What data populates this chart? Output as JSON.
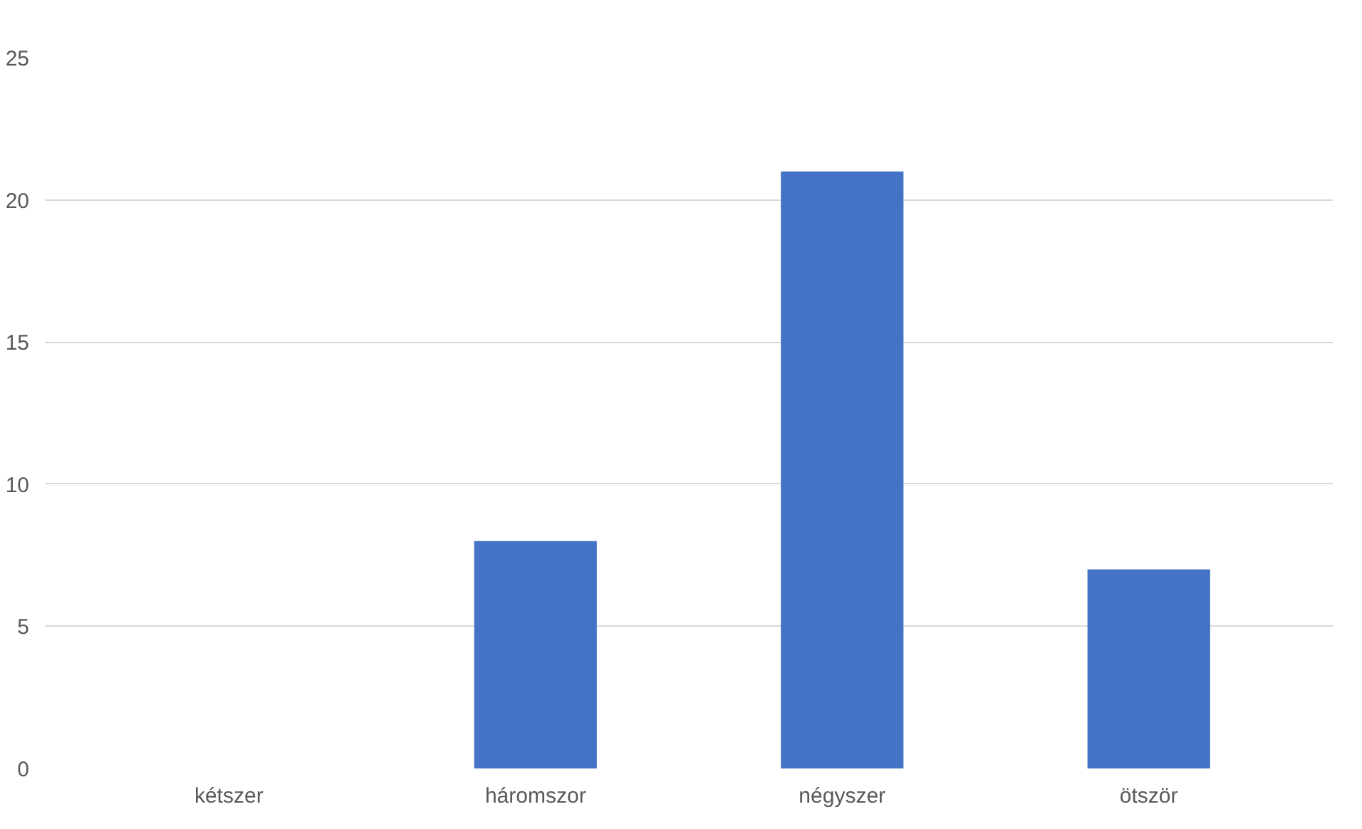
{
  "chart_data": {
    "type": "bar",
    "categories": [
      "kétszer",
      "háromszor",
      "négyszer",
      "ötször"
    ],
    "values": [
      0,
      8,
      21,
      7
    ],
    "color": "#4472c4",
    "ylim": [
      0,
      25
    ],
    "yticks": [
      0,
      5,
      10,
      15,
      20,
      25
    ],
    "grid": "y"
  }
}
